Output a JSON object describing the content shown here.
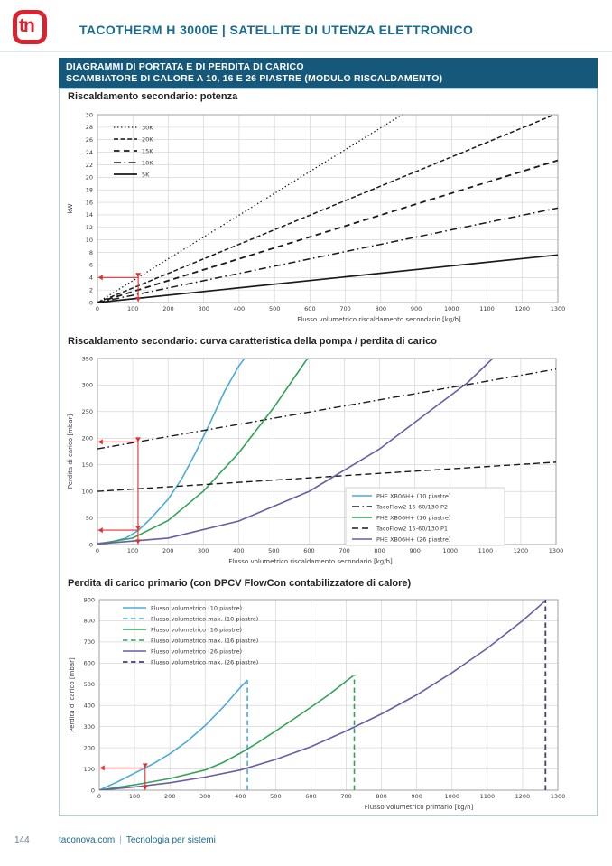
{
  "header": {
    "brand": "tn",
    "title": "TACOTHERM H 3000E  |  SATELLITE DI UTENZA ELETTRONICO"
  },
  "banner": {
    "line1": "DIAGRAMMI DI PORTATA E DI PERDITA DI CARICO",
    "line2": "SCAMBIATORE DI CALORE A 10, 16 E 26 PIASTRE (MODULO RISCALDAMENTO)"
  },
  "footer": {
    "page_number": "144",
    "site": "taconova.com",
    "sep": "|",
    "tagline": "Tecnologia per sistemi"
  },
  "colors": {
    "brand_red": "#d9232e",
    "teal_heading": "#1a6b8d",
    "banner_bg": "#16587a",
    "annotation_red": "#e03030",
    "curve_blue": "#4bacd8",
    "curve_green": "#33a457",
    "curve_purple": "#6b5ca5",
    "curve_dark_purple": "#4a3e78",
    "curve_black": "#1a1a1a",
    "grid": "#cfcfcf"
  },
  "chart_data": [
    {
      "id": "c1",
      "type": "line",
      "title": "Riscaldamento secondario: potenza",
      "xlabel": "Flusso volumetrico riscaldamento secondario [kg/h]",
      "ylabel": "kW",
      "xlim": [
        0,
        1300
      ],
      "xstep": 100,
      "ylim": [
        0,
        30
      ],
      "ystep": 2,
      "grid": true,
      "legend_position": "top-left",
      "series": [
        {
          "name": "30K",
          "style": "dotted",
          "color": "#1a1a1a",
          "width": 1.3,
          "x": [
            0,
            860
          ],
          "y": [
            0,
            30
          ]
        },
        {
          "name": "20K",
          "style": "dash-dense",
          "color": "#1a1a1a",
          "width": 1.5,
          "x": [
            0,
            1290
          ],
          "y": [
            0,
            30
          ]
        },
        {
          "name": "15K",
          "style": "dash-long",
          "color": "#1a1a1a",
          "width": 1.8,
          "x": [
            0,
            1300
          ],
          "y": [
            0,
            22.7
          ]
        },
        {
          "name": "10K",
          "style": "dash-dot",
          "color": "#1a1a1a",
          "width": 1.5,
          "x": [
            0,
            1300
          ],
          "y": [
            0,
            15.1
          ]
        },
        {
          "name": "5K",
          "style": "solid",
          "color": "#1a1a1a",
          "width": 1.7,
          "x": [
            0,
            1300
          ],
          "y": [
            0,
            7.6
          ]
        }
      ],
      "annotations": [
        {
          "x1": 115,
          "y1": 4,
          "x2": 2,
          "y2": 4,
          "heads": [
            {
              "at": "end",
              "dir": "left"
            }
          ]
        },
        {
          "x1": 115,
          "y1": 4,
          "x2": 115,
          "y2": 0.15,
          "heads": [
            {
              "at": "start",
              "dir": "down"
            },
            {
              "at": "end",
              "dir": "down"
            }
          ]
        }
      ]
    },
    {
      "id": "c2",
      "type": "line",
      "title": "Riscaldamento secondario: curva caratteristica della pompa / perdita di carico",
      "xlabel": "Flusso volumetrico riscaldamento secondario [kg/h]",
      "ylabel": "Perdita di carico [mbar]",
      "xlim": [
        0,
        1300
      ],
      "xstep": 100,
      "ylim": [
        0,
        350
      ],
      "ystep": 50,
      "grid": true,
      "legend_position": "bottom-right",
      "series": [
        {
          "name": "PHE XB06H+ (10 piastre)",
          "style": "solid",
          "color": "#4bacd8",
          "width": 1.6,
          "x": [
            0,
            40,
            80,
            115,
            150,
            200,
            240,
            280,
            320,
            360,
            400,
            422
          ],
          "y": [
            2,
            5,
            12,
            26,
            48,
            85,
            125,
            175,
            230,
            288,
            335,
            355
          ]
        },
        {
          "name": "TacoFlow2 15-60/130 P2",
          "style": "dash-dot",
          "color": "#1a1a1a",
          "width": 1.4,
          "x": [
            0,
            1300
          ],
          "y": [
            180,
            330
          ]
        },
        {
          "name": "PHE XB06H+ (16 piastre)",
          "style": "solid",
          "color": "#33a457",
          "width": 1.6,
          "x": [
            0,
            100,
            200,
            300,
            400,
            500,
            590,
            612
          ],
          "y": [
            1,
            12,
            45,
            100,
            172,
            258,
            345,
            362
          ]
        },
        {
          "name": "TacoFlow2 15-60/130 P1",
          "style": "dash",
          "color": "#1a1a1a",
          "width": 1.4,
          "x": [
            0,
            1300
          ],
          "y": [
            100,
            155
          ]
        },
        {
          "name": "PHE XB06H+ (26 piastre)",
          "style": "solid",
          "color": "#6b5ca5",
          "width": 1.6,
          "x": [
            0,
            200,
            400,
            600,
            800,
            950,
            1050,
            1120,
            1155
          ],
          "y": [
            1,
            12,
            44,
            100,
            180,
            255,
            305,
            350,
            372
          ]
        }
      ],
      "annotations": [
        {
          "x1": 115,
          "y1": 193,
          "x2": 2,
          "y2": 193,
          "heads": [
            {
              "at": "end",
              "dir": "left"
            }
          ]
        },
        {
          "x1": 115,
          "y1": 27,
          "x2": 2,
          "y2": 27,
          "heads": [
            {
              "at": "end",
              "dir": "left"
            }
          ]
        },
        {
          "x1": 115,
          "y1": 193,
          "x2": 115,
          "y2": 1,
          "heads": [
            {
              "at": "start",
              "dir": "down"
            },
            {
              "at": "end",
              "dir": "down"
            }
          ]
        },
        {
          "x1": 115,
          "y1": 35,
          "x2": 115,
          "y2": 27,
          "heads": [
            {
              "at": "end",
              "dir": "down"
            }
          ]
        }
      ]
    },
    {
      "id": "c3",
      "type": "line",
      "title": "Perdita di carico primario (con DPCV FlowCon contabilizzatore di calore)",
      "xlabel": "Flusso volumetrico primario [kg/h]",
      "ylabel": "Perdita di carico [mbar]",
      "xlim": [
        0,
        1300
      ],
      "xstep": 100,
      "ylim": [
        0,
        900
      ],
      "ystep": 100,
      "grid": true,
      "legend_position": "top-left",
      "series": [
        {
          "name": "Flusso volumetrico (10 piastre)",
          "style": "solid",
          "color": "#4bacd8",
          "width": 1.6,
          "x": [
            0,
            50,
            100,
            150,
            200,
            250,
            300,
            350,
            400,
            420
          ],
          "y": [
            0,
            38,
            80,
            122,
            172,
            232,
            305,
            390,
            485,
            520
          ]
        },
        {
          "name": "Flusso volumetrico max. (10 piastre)",
          "style": "dash-v",
          "color": "#4bacd8",
          "width": 1.6,
          "x": [
            420,
            420
          ],
          "y": [
            0,
            520
          ]
        },
        {
          "name": "Flusso volumetrico (16 piastre)",
          "style": "solid",
          "color": "#33a457",
          "width": 1.6,
          "x": [
            0,
            100,
            200,
            300,
            350,
            400,
            450,
            500,
            550,
            600,
            650,
            700,
            720
          ],
          "y": [
            0,
            25,
            55,
            95,
            130,
            175,
            225,
            280,
            335,
            392,
            450,
            515,
            540
          ]
        },
        {
          "name": "Flusso volumetrico max. (16 piastre)",
          "style": "dash-v",
          "color": "#33a457",
          "width": 1.6,
          "x": [
            723,
            723
          ],
          "y": [
            0,
            540
          ]
        },
        {
          "name": "Flusso volumetrico (26 piastre)",
          "style": "solid",
          "color": "#6b5ca5",
          "width": 1.6,
          "x": [
            0,
            100,
            200,
            300,
            400,
            500,
            600,
            700,
            800,
            900,
            1000,
            1100,
            1200,
            1265
          ],
          "y": [
            0,
            15,
            35,
            62,
            95,
            145,
            205,
            280,
            360,
            450,
            555,
            670,
            800,
            895
          ]
        },
        {
          "name": "Flusso volumetrico max. (26 piastre)",
          "style": "dash-v",
          "color": "#4a3e78",
          "width": 1.8,
          "x": [
            1265,
            1265
          ],
          "y": [
            0,
            900
          ]
        }
      ],
      "annotations": [
        {
          "x1": 130,
          "y1": 105,
          "x2": 2,
          "y2": 105,
          "heads": [
            {
              "at": "end",
              "dir": "left"
            }
          ]
        },
        {
          "x1": 130,
          "y1": 105,
          "x2": 130,
          "y2": 1,
          "heads": [
            {
              "at": "start",
              "dir": "down"
            },
            {
              "at": "end",
              "dir": "down"
            }
          ]
        }
      ]
    }
  ]
}
